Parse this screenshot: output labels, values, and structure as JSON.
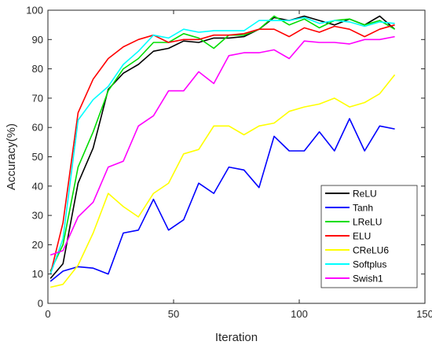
{
  "chart_data": {
    "type": "line",
    "title": "",
    "xlabel": "Iteration",
    "ylabel": "Accuracy(%)",
    "xlim": [
      0,
      150
    ],
    "ylim": [
      0,
      100
    ],
    "xticks": [
      0,
      50,
      100,
      150
    ],
    "yticks": [
      0,
      10,
      20,
      30,
      40,
      50,
      60,
      70,
      80,
      90,
      100
    ],
    "grid": false,
    "legend_position": "bottom-right",
    "x": [
      1,
      6,
      12,
      18,
      24,
      30,
      36,
      42,
      48,
      54,
      60,
      66,
      72,
      78,
      84,
      90,
      96,
      102,
      108,
      114,
      120,
      126,
      132,
      138
    ],
    "series": [
      {
        "name": "ReLU",
        "color": "#000000",
        "values": [
          8.5,
          13.5,
          41,
          53,
          73,
          78.5,
          81.5,
          86,
          87,
          89.5,
          89,
          90.5,
          90.5,
          91,
          93.5,
          97.5,
          96.5,
          98,
          96.5,
          95,
          97,
          95,
          98,
          93.5
        ]
      },
      {
        "name": "Tanh",
        "color": "#0000ff",
        "values": [
          7.5,
          11,
          12.5,
          12,
          10,
          24,
          25,
          35.5,
          25,
          28.5,
          41,
          37.5,
          46.5,
          45.5,
          39.5,
          57,
          52,
          52,
          58.5,
          52,
          63,
          52,
          60.5,
          59.5
        ]
      },
      {
        "name": "LReLU",
        "color": "#00dd00",
        "values": [
          11,
          20,
          46.5,
          58.5,
          72.5,
          80,
          83.5,
          89,
          89,
          92,
          90.5,
          87,
          91.5,
          91.5,
          93.5,
          98,
          95,
          97,
          94,
          96.5,
          97,
          95,
          96.5,
          93.5
        ]
      },
      {
        "name": "ELU",
        "color": "#ff0000",
        "values": [
          10,
          27.5,
          65,
          76.5,
          83.5,
          87.5,
          90,
          91.5,
          89,
          90,
          90,
          91.5,
          91.5,
          92,
          93.5,
          93.5,
          91,
          94,
          92.5,
          94.5,
          93.5,
          91,
          93.5,
          95
        ]
      },
      {
        "name": "CReLU6",
        "color": "#ffff00",
        "values": [
          5.5,
          6.5,
          13,
          24,
          37.5,
          33,
          29.5,
          37.5,
          41,
          51,
          52.5,
          60.5,
          60.5,
          57.5,
          60.5,
          61.5,
          65.5,
          67,
          68,
          70,
          67,
          68.5,
          71.5,
          78
        ]
      },
      {
        "name": "Softplus",
        "color": "#00ffff",
        "values": [
          10,
          22,
          62.5,
          69.5,
          74,
          81.5,
          86,
          91.5,
          90.5,
          93.5,
          92.5,
          93,
          93,
          93,
          96.5,
          96.5,
          96.5,
          97.5,
          95.5,
          96.5,
          96,
          94.5,
          96,
          95.5
        ]
      },
      {
        "name": "Swish1",
        "color": "#ff00ff",
        "values": [
          16.5,
          18,
          29.5,
          34.5,
          46.5,
          48.5,
          60.5,
          64,
          72.5,
          72.5,
          79,
          75,
          84.5,
          85.5,
          85.5,
          86.5,
          83.5,
          89.5,
          89,
          89,
          88.5,
          90,
          90,
          91
        ]
      }
    ]
  }
}
